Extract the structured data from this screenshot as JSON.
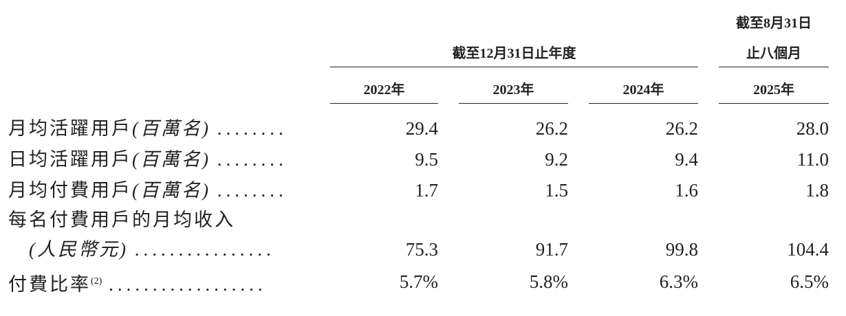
{
  "header": {
    "period_year": "截至12月31日止年度",
    "period_months_line1": "截至8月31日",
    "period_months_line2": "止八個月",
    "years": [
      "2022年",
      "2023年",
      "2024年",
      "2025年"
    ]
  },
  "rows": [
    {
      "label": "月均活躍用戶",
      "unit": "(百萬名)",
      "leader": "........",
      "values": [
        "29.4",
        "26.2",
        "26.2",
        "28.0"
      ]
    },
    {
      "label": "日均活躍用戶",
      "unit": "(百萬名)",
      "leader": "........",
      "values": [
        "9.5",
        "9.2",
        "9.4",
        "11.0"
      ]
    },
    {
      "label": "月均付費用戶",
      "unit": "(百萬名)",
      "leader": "........",
      "values": [
        "1.7",
        "1.5",
        "1.6",
        "1.8"
      ]
    },
    {
      "label": "每名付費用戶的月均收入",
      "unit": "(人民幣元)",
      "leader": "................",
      "values": [
        "75.3",
        "91.7",
        "99.8",
        "104.4"
      ]
    },
    {
      "label": "付費比率",
      "note": "(2)",
      "leader": "..................",
      "values": [
        "5.7%",
        "5.8%",
        "6.3%",
        "6.5%"
      ]
    }
  ]
}
